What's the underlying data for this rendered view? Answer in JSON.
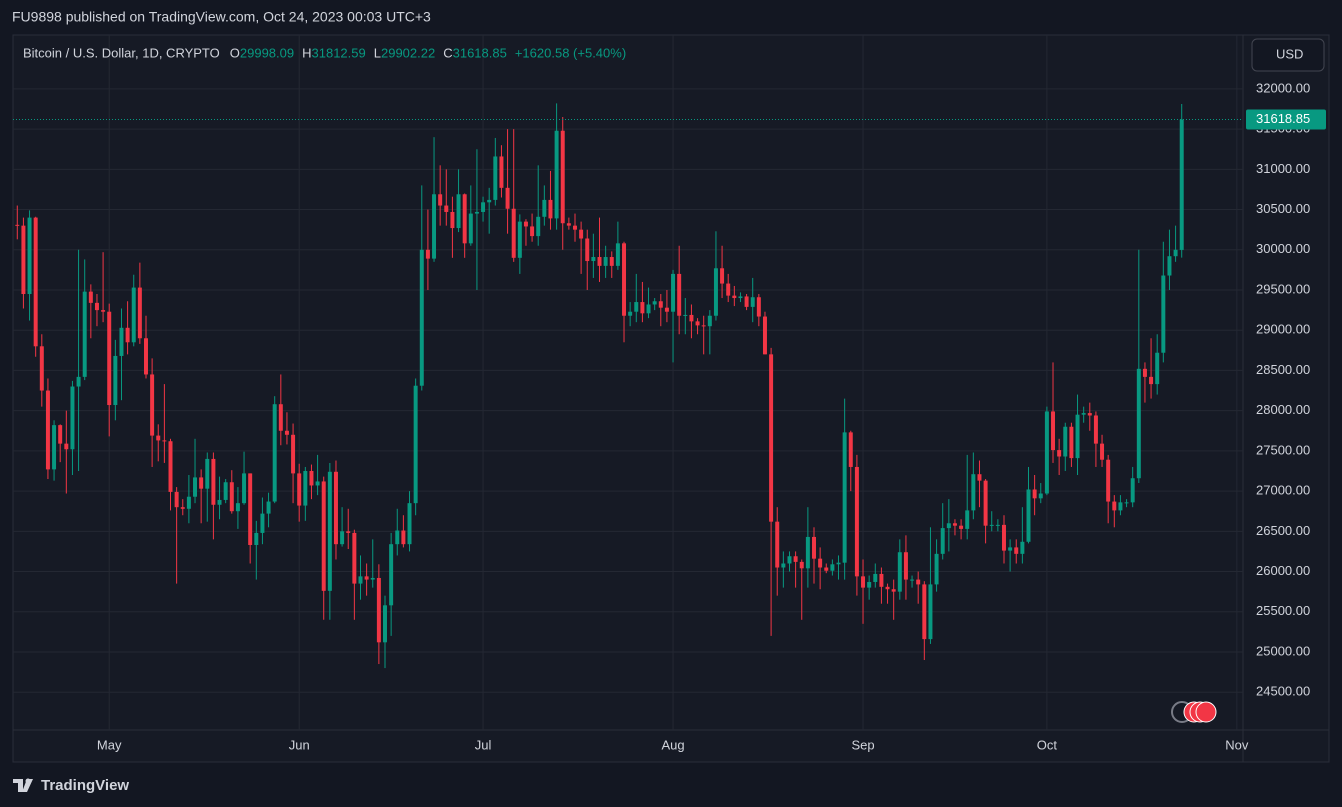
{
  "header": {
    "published": "FU9898 published on TradingView.com, Oct 24, 2023 00:03 UTC+3"
  },
  "footer": {
    "brand": "TradingView"
  },
  "currency_button": "USD",
  "chart_data": {
    "type": "candlestick",
    "symbol": "Bitcoin / U.S. Dollar, 1D, CRYPTO",
    "ohlc_labels": [
      "O",
      "H",
      "L",
      "C"
    ],
    "change_label": "+1620.58 (+5.40%)",
    "up_color": "#089981",
    "down_color": "#f23645",
    "grid": true,
    "xlim": [
      -0.7,
      200
    ],
    "xticks": [
      {
        "value": 15,
        "label": "May"
      },
      {
        "value": 46,
        "label": "Jun"
      },
      {
        "value": 76,
        "label": "Jul"
      },
      {
        "value": 107,
        "label": "Aug"
      },
      {
        "value": 138,
        "label": "Sep"
      },
      {
        "value": 168,
        "label": "Oct"
      },
      {
        "value": 199,
        "label": "Nov"
      }
    ],
    "ylim": [
      24030,
      32670
    ],
    "yticks": [
      {
        "value": 24500,
        "label": "24500.00"
      },
      {
        "value": 25000,
        "label": "25000.00"
      },
      {
        "value": 25500,
        "label": "25500.00"
      },
      {
        "value": 26000,
        "label": "26000.00"
      },
      {
        "value": 26500,
        "label": "26500.00"
      },
      {
        "value": 27000,
        "label": "27000.00"
      },
      {
        "value": 27500,
        "label": "27500.00"
      },
      {
        "value": 28000,
        "label": "28000.00"
      },
      {
        "value": 28500,
        "label": "28500.00"
      },
      {
        "value": 29000,
        "label": "29000.00"
      },
      {
        "value": 29500,
        "label": "29500.00"
      },
      {
        "value": 30000,
        "label": "30000.00"
      },
      {
        "value": 30500,
        "label": "30500.00"
      },
      {
        "value": 31000,
        "label": "31000.00"
      },
      {
        "value": 31500,
        "label": "31500.00"
      },
      {
        "value": 32000,
        "label": "32000.00"
      }
    ],
    "candles": [
      [
        30310,
        30550,
        30130,
        30300
      ],
      [
        30300,
        30400,
        29270,
        29450
      ],
      [
        29450,
        30490,
        29120,
        30400
      ],
      [
        30400,
        30410,
        28670,
        28800
      ],
      [
        28800,
        28950,
        28050,
        28250
      ],
      [
        28250,
        28400,
        27150,
        27270
      ],
      [
        27270,
        27880,
        27130,
        27820
      ],
      [
        27820,
        27830,
        27360,
        27590
      ],
      [
        27590,
        28000,
        26970,
        27520
      ],
      [
        27520,
        28370,
        27200,
        28300
      ],
      [
        28300,
        30000,
        27250,
        28420
      ],
      [
        28420,
        29880,
        28380,
        29480
      ],
      [
        29480,
        29570,
        28900,
        29340
      ],
      [
        29340,
        29450,
        29050,
        29250
      ],
      [
        29250,
        29970,
        29100,
        29230
      ],
      [
        29230,
        29330,
        27680,
        28070
      ],
      [
        28070,
        28880,
        27880,
        28680
      ],
      [
        28680,
        29270,
        28130,
        29030
      ],
      [
        29030,
        29360,
        28700,
        28850
      ],
      [
        28850,
        29690,
        28800,
        29530
      ],
      [
        29530,
        29840,
        28830,
        28900
      ],
      [
        28900,
        29180,
        28400,
        28450
      ],
      [
        28450,
        28650,
        27300,
        27690
      ],
      [
        27690,
        27830,
        27370,
        27630
      ],
      [
        27630,
        28330,
        27350,
        27620
      ],
      [
        27620,
        27650,
        26760,
        26990
      ],
      [
        26990,
        27050,
        25850,
        26800
      ],
      [
        26800,
        26900,
        26700,
        26780
      ],
      [
        26780,
        27200,
        26600,
        26930
      ],
      [
        26930,
        27650,
        26850,
        27170
      ],
      [
        27170,
        27270,
        26600,
        27030
      ],
      [
        27030,
        27480,
        26620,
        27400
      ],
      [
        27400,
        27480,
        26400,
        26830
      ],
      [
        26830,
        27180,
        26650,
        26890
      ],
      [
        26890,
        27150,
        26850,
        27110
      ],
      [
        27110,
        27260,
        26720,
        26750
      ],
      [
        26750,
        27050,
        26530,
        26850
      ],
      [
        26850,
        27490,
        26830,
        27220
      ],
      [
        27220,
        27220,
        26100,
        26330
      ],
      [
        26330,
        26630,
        25900,
        26480
      ],
      [
        26480,
        26920,
        26340,
        26720
      ],
      [
        26720,
        26980,
        26550,
        26870
      ],
      [
        26870,
        28180,
        26850,
        28080
      ],
      [
        28080,
        28450,
        27570,
        27750
      ],
      [
        27750,
        27980,
        27580,
        27700
      ],
      [
        27700,
        27840,
        26850,
        27220
      ],
      [
        27220,
        27340,
        26620,
        26820
      ],
      [
        26820,
        27300,
        26630,
        27250
      ],
      [
        27250,
        27330,
        26900,
        27070
      ],
      [
        27070,
        27450,
        26950,
        27120
      ],
      [
        27120,
        27180,
        25400,
        25760
      ],
      [
        25760,
        27350,
        25400,
        27240
      ],
      [
        27240,
        27380,
        26150,
        26340
      ],
      [
        26340,
        26800,
        26310,
        26500
      ],
      [
        26500,
        26780,
        26280,
        26480
      ],
      [
        26480,
        26520,
        25400,
        25850
      ],
      [
        25850,
        26200,
        25650,
        25940
      ],
      [
        25940,
        26100,
        25700,
        25900
      ],
      [
        25900,
        26400,
        25800,
        25920
      ],
      [
        25920,
        26090,
        24850,
        25120
      ],
      [
        25120,
        25700,
        24800,
        25580
      ],
      [
        25580,
        26480,
        25200,
        26340
      ],
      [
        26340,
        26780,
        26200,
        26510
      ],
      [
        26510,
        26700,
        26300,
        26340
      ],
      [
        26340,
        27000,
        26250,
        26850
      ],
      [
        26850,
        28400,
        26700,
        28310
      ],
      [
        28310,
        30800,
        28250,
        30000
      ],
      [
        30000,
        30500,
        29500,
        29890
      ],
      [
        29890,
        31400,
        29850,
        30690
      ],
      [
        30690,
        31050,
        30300,
        30550
      ],
      [
        30550,
        31000,
        30300,
        30470
      ],
      [
        30470,
        30660,
        29900,
        30270
      ],
      [
        30270,
        31000,
        30220,
        30690
      ],
      [
        30690,
        30700,
        29900,
        30080
      ],
      [
        30080,
        30800,
        30050,
        30450
      ],
      [
        30450,
        31250,
        29500,
        30470
      ],
      [
        30470,
        30660,
        30350,
        30590
      ],
      [
        30590,
        30770,
        30200,
        30620
      ],
      [
        30620,
        31390,
        30550,
        31160
      ],
      [
        31160,
        31300,
        30650,
        30770
      ],
      [
        30770,
        31500,
        30200,
        30510
      ],
      [
        30510,
        31500,
        29850,
        29900
      ],
      [
        29900,
        30440,
        29700,
        30350
      ],
      [
        30350,
        30380,
        30050,
        30290
      ],
      [
        30290,
        30450,
        30100,
        30170
      ],
      [
        30170,
        31050,
        30050,
        30410
      ],
      [
        30410,
        30800,
        30300,
        30620
      ],
      [
        30620,
        30980,
        30250,
        30390
      ],
      [
        30390,
        31820,
        30250,
        31480
      ],
      [
        31480,
        31650,
        30000,
        30330
      ],
      [
        30330,
        30400,
        30250,
        30300
      ],
      [
        30300,
        30450,
        30100,
        30250
      ],
      [
        30250,
        30350,
        29700,
        30140
      ],
      [
        30140,
        30250,
        29500,
        29860
      ],
      [
        29860,
        30200,
        29650,
        29910
      ],
      [
        29910,
        30400,
        29600,
        29800
      ],
      [
        29800,
        30050,
        29650,
        29910
      ],
      [
        29910,
        29980,
        29650,
        29800
      ],
      [
        29800,
        30350,
        29750,
        30080
      ],
      [
        30080,
        30100,
        28850,
        29180
      ],
      [
        29180,
        29350,
        29050,
        29230
      ],
      [
        29230,
        29700,
        29100,
        29350
      ],
      [
        29350,
        29600,
        29100,
        29210
      ],
      [
        29210,
        29530,
        29150,
        29320
      ],
      [
        29320,
        29400,
        29250,
        29360
      ],
      [
        29360,
        29450,
        29050,
        29280
      ],
      [
        29280,
        29500,
        29100,
        29230
      ],
      [
        29230,
        29750,
        28600,
        29700
      ],
      [
        29700,
        30050,
        28950,
        29180
      ],
      [
        29180,
        29400,
        28950,
        29190
      ],
      [
        29190,
        29320,
        28900,
        29110
      ],
      [
        29110,
        29150,
        28950,
        29060
      ],
      [
        29060,
        29180,
        28700,
        29050
      ],
      [
        29050,
        29250,
        28700,
        29180
      ],
      [
        29180,
        30230,
        29120,
        29770
      ],
      [
        29770,
        30050,
        29400,
        29580
      ],
      [
        29580,
        29700,
        29350,
        29430
      ],
      [
        29430,
        29550,
        29300,
        29400
      ],
      [
        29400,
        29470,
        29350,
        29420
      ],
      [
        29420,
        29450,
        29250,
        29290
      ],
      [
        29290,
        29650,
        29100,
        29410
      ],
      [
        29410,
        29450,
        29050,
        29170
      ],
      [
        29170,
        29230,
        28700,
        28700
      ],
      [
        28700,
        28780,
        25200,
        26620
      ],
      [
        26620,
        26800,
        25700,
        26050
      ],
      [
        26050,
        26250,
        25800,
        26100
      ],
      [
        26100,
        26250,
        26000,
        26190
      ],
      [
        26190,
        26250,
        25800,
        26120
      ],
      [
        26120,
        26150,
        25400,
        26040
      ],
      [
        26040,
        26800,
        25800,
        26430
      ],
      [
        26430,
        26550,
        25850,
        26160
      ],
      [
        26160,
        26300,
        25780,
        26050
      ],
      [
        26050,
        26100,
        25980,
        26010
      ],
      [
        26010,
        26150,
        25950,
        26090
      ],
      [
        26090,
        26200,
        25900,
        26110
      ],
      [
        26110,
        28150,
        25900,
        27730
      ],
      [
        27730,
        27750,
        27000,
        27300
      ],
      [
        27300,
        27450,
        25700,
        25940
      ],
      [
        25940,
        26150,
        25350,
        25800
      ],
      [
        25800,
        25950,
        25650,
        25870
      ],
      [
        25870,
        26100,
        25800,
        25970
      ],
      [
        25970,
        26050,
        25600,
        25810
      ],
      [
        25810,
        25850,
        25600,
        25780
      ],
      [
        25780,
        25900,
        25400,
        25750
      ],
      [
        25750,
        26400,
        25650,
        26240
      ],
      [
        26240,
        26450,
        25650,
        25900
      ],
      [
        25900,
        25950,
        25800,
        25900
      ],
      [
        25900,
        26000,
        25600,
        25840
      ],
      [
        25840,
        25880,
        24900,
        25160
      ],
      [
        25160,
        26550,
        25100,
        25840
      ],
      [
        25840,
        26400,
        25750,
        26220
      ],
      [
        26220,
        26850,
        26150,
        26540
      ],
      [
        26540,
        26900,
        26250,
        26600
      ],
      [
        26600,
        26650,
        26450,
        26570
      ],
      [
        26570,
        26650,
        26400,
        26530
      ],
      [
        26530,
        27450,
        26400,
        26760
      ],
      [
        26760,
        27480,
        26650,
        27210
      ],
      [
        27210,
        27380,
        26800,
        27130
      ],
      [
        27130,
        27150,
        26350,
        26570
      ],
      [
        26570,
        26750,
        26500,
        26580
      ],
      [
        26580,
        26650,
        26500,
        26580
      ],
      [
        26580,
        26700,
        26100,
        26260
      ],
      [
        26260,
        26400,
        26000,
        26300
      ],
      [
        26300,
        26400,
        26100,
        26220
      ],
      [
        26220,
        26800,
        26100,
        26370
      ],
      [
        26370,
        27300,
        26350,
        27020
      ],
      [
        27020,
        27200,
        26700,
        26910
      ],
      [
        26910,
        27100,
        26850,
        26970
      ],
      [
        26970,
        28050,
        26950,
        27990
      ],
      [
        27990,
        28600,
        27350,
        27510
      ],
      [
        27510,
        27650,
        27200,
        27430
      ],
      [
        27430,
        27850,
        27250,
        27800
      ],
      [
        27800,
        27850,
        27300,
        27410
      ],
      [
        27410,
        28200,
        27200,
        27950
      ],
      [
        27950,
        28050,
        27850,
        27970
      ],
      [
        27970,
        28100,
        27750,
        27940
      ],
      [
        27940,
        27990,
        27300,
        27590
      ],
      [
        27590,
        27700,
        27300,
        27390
      ],
      [
        27390,
        27450,
        26600,
        26870
      ],
      [
        26870,
        26950,
        26550,
        26760
      ],
      [
        26760,
        26950,
        26700,
        26860
      ],
      [
        26860,
        26900,
        26800,
        26860
      ],
      [
        26860,
        27300,
        26800,
        27160
      ],
      [
        27160,
        30000,
        27100,
        28520
      ],
      [
        28520,
        28600,
        28100,
        28420
      ],
      [
        28420,
        28900,
        28150,
        28330
      ],
      [
        28330,
        28950,
        28200,
        28720
      ],
      [
        28720,
        30100,
        28600,
        29680
      ],
      [
        29680,
        30250,
        29500,
        29920
      ],
      [
        29920,
        30300,
        29850,
        30000
      ],
      [
        29998.09,
        31812.59,
        29902.22,
        31618.85
      ]
    ]
  }
}
